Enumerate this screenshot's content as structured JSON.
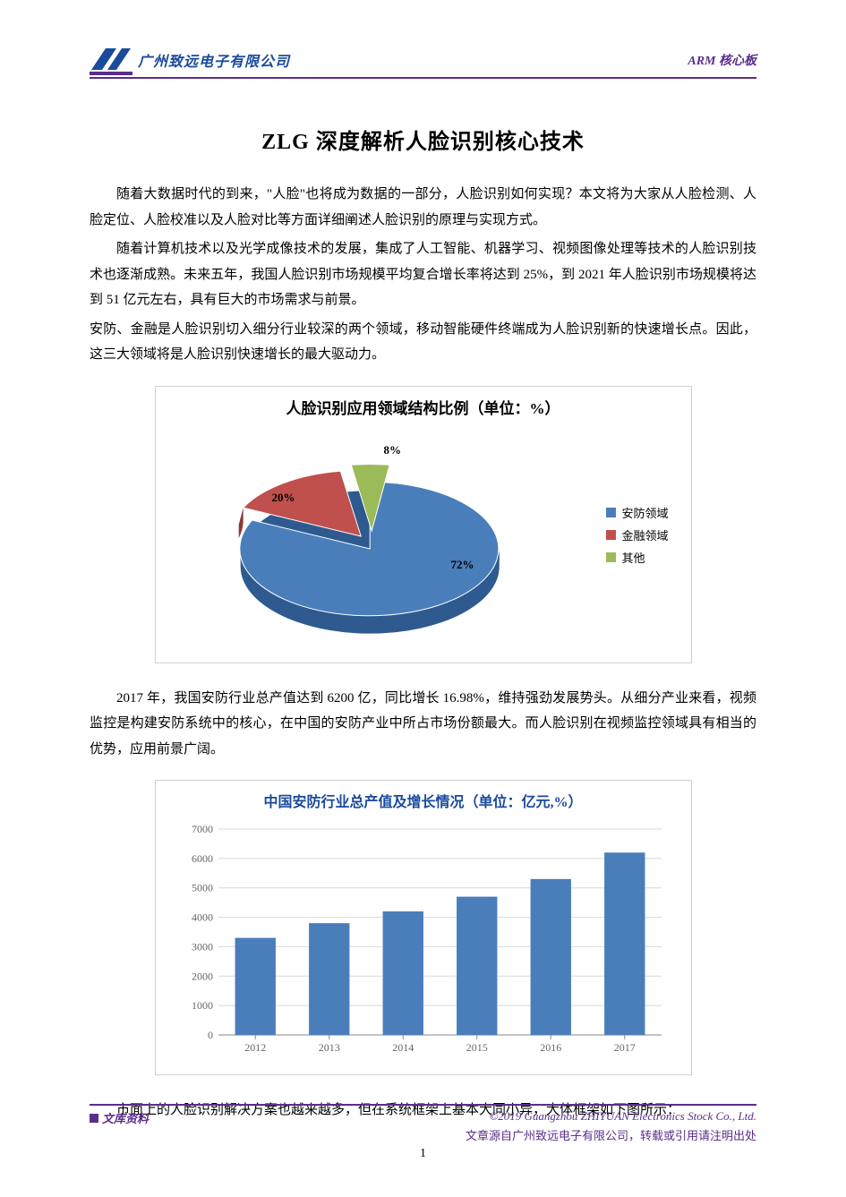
{
  "header": {
    "company": "广州致远电子有限公司",
    "right_label": "ARM 核心板"
  },
  "title": "ZLG 深度解析人脸识别核心技术",
  "paragraphs": {
    "p1": "随着大数据时代的到来，\"人脸\"也将成为数据的一部分，人脸识别如何实现？本文将为大家从人脸检测、人脸定位、人脸校准以及人脸对比等方面详细阐述人脸识别的原理与实现方式。",
    "p2": "随着计算机技术以及光学成像技术的发展，集成了人工智能、机器学习、视频图像处理等技术的人脸识别技术也逐渐成熟。未来五年，我国人脸识别市场规模平均复合增长率将达到 25%，到 2021 年人脸识别市场规模将达到 51 亿元左右，具有巨大的市场需求与前景。",
    "p3": "安防、金融是人脸识别切入细分行业较深的两个领域，移动智能硬件终端成为人脸识别新的快速增长点。因此，这三大领域将是人脸识别快速增长的最大驱动力。",
    "p4": "2017 年，我国安防行业总产值达到 6200 亿，同比增长 16.98%，维持强劲发展势头。从细分产业来看，视频监控是构建安防系统中的核心，在中国的安防产业中所占市场份额最大。而人脸识别在视频监控领域具有相当的优势，应用前景广阔。",
    "p5": "市面上的人脸识别解决方案也越来越多，但在系统框架上基本大同小异，大体框架如下图所示："
  },
  "pie_chart": {
    "type": "pie",
    "title": "人脸识别应用领域结构比例（单位：%）",
    "slices": [
      {
        "label": "安防领域",
        "value": 72,
        "color": "#4a7ebb",
        "display": "72%"
      },
      {
        "label": "金融领域",
        "value": 20,
        "color": "#c0504d",
        "display": "20%"
      },
      {
        "label": "其他",
        "value": 8,
        "color": "#9bbb59",
        "display": "8%"
      }
    ],
    "background_color": "#ffffff",
    "border_color": "#d0d0d0",
    "title_fontsize": 17,
    "label_fontsize": 13
  },
  "bar_chart": {
    "type": "bar",
    "title": "中国安防行业总产值及增长情况（单位：亿元,%）",
    "categories": [
      "2012",
      "2013",
      "2014",
      "2015",
      "2016",
      "2017"
    ],
    "values": [
      3300,
      3800,
      4200,
      4700,
      5300,
      6200
    ],
    "ylim": [
      0,
      7000
    ],
    "ytick_step": 1000,
    "yticks": [
      "0",
      "1000",
      "2000",
      "3000",
      "4000",
      "5000",
      "6000",
      "7000"
    ],
    "bar_color": "#4a7ebb",
    "grid_color": "#d9d9d9",
    "background_color": "#ffffff",
    "border_color": "#d0d0d0",
    "title_color": "#1a4a9c",
    "title_fontsize": 16,
    "axis_fontsize": 12,
    "bar_width": 0.55
  },
  "footer": {
    "left_label": "文库资料",
    "copyright": "©2019 Guangzhou ZHIYUAN Electronics Stock Co., Ltd.",
    "attribution": "文章源自广州致远电子有限公司，转载或引用请注明出处",
    "page_number": "1"
  }
}
